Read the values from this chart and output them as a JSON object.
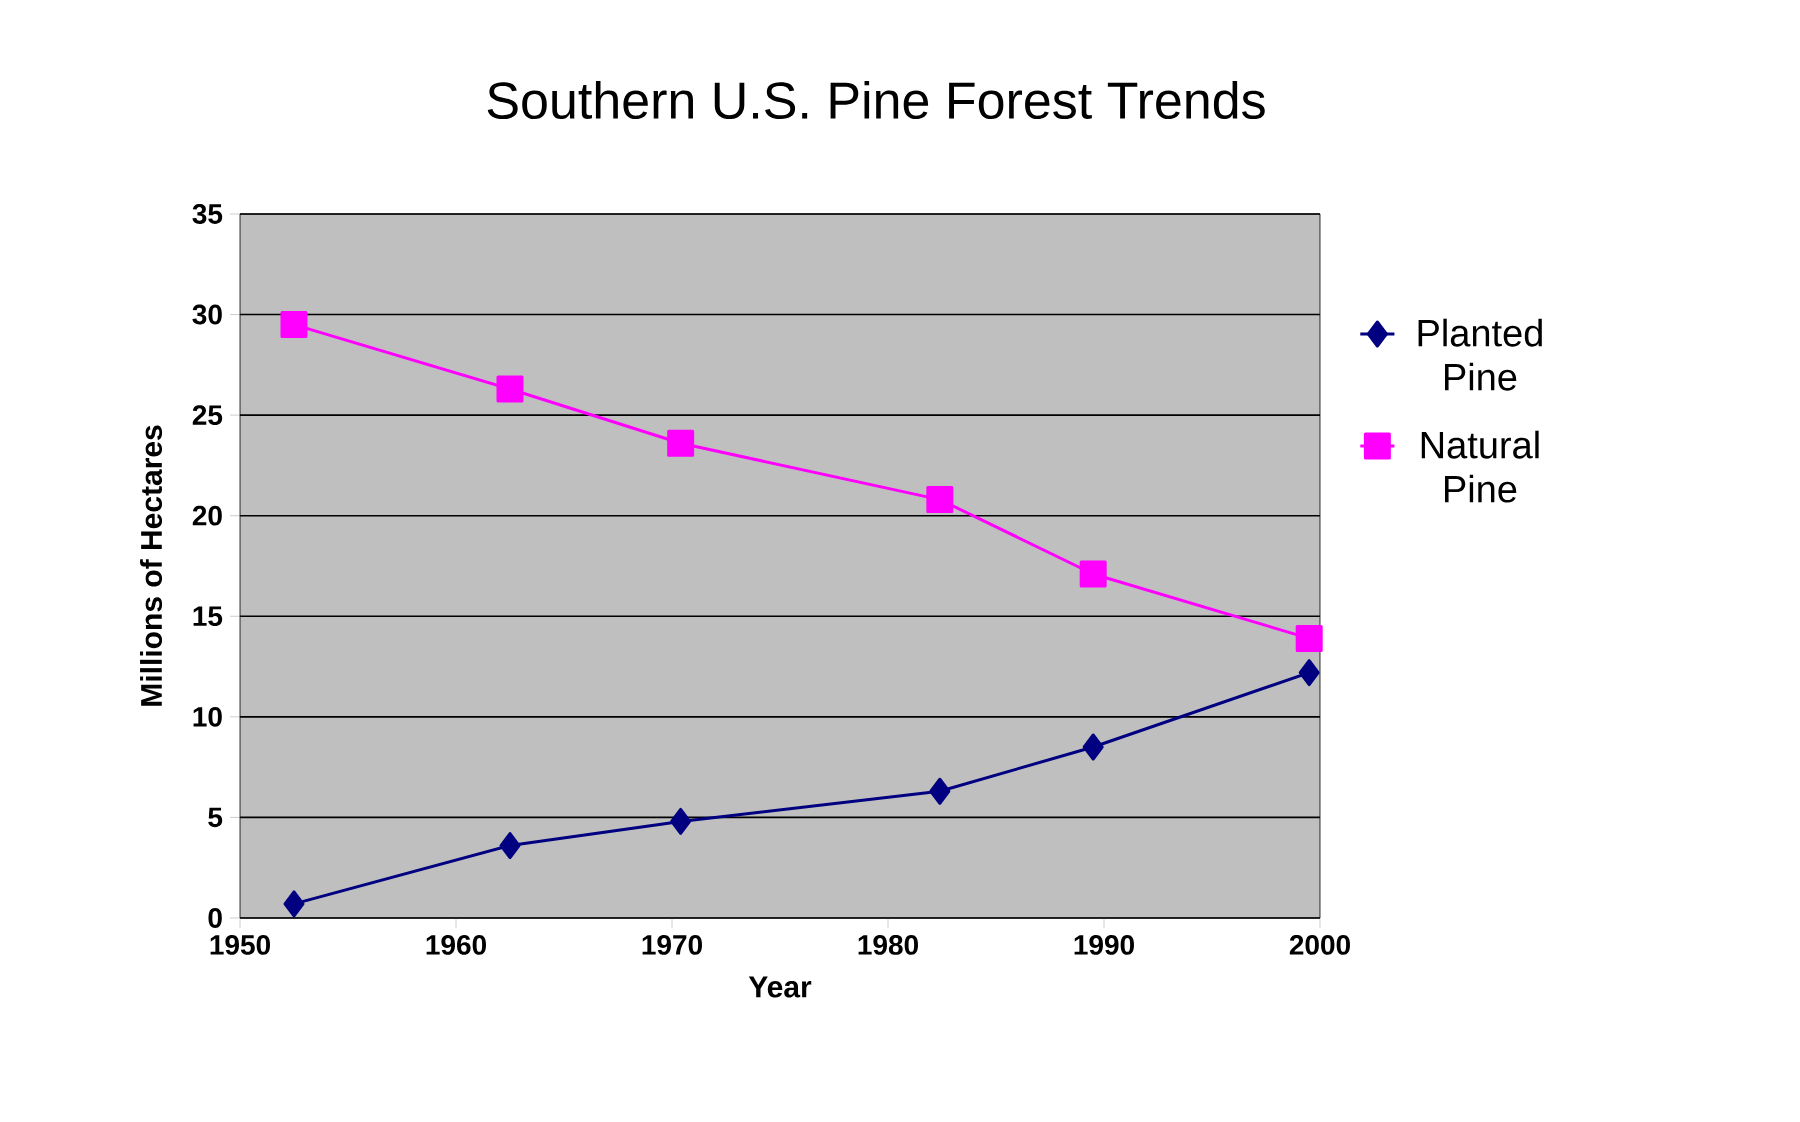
{
  "chart_data": {
    "type": "line",
    "title": "Southern U.S. Pine Forest Trends",
    "xlabel": "Year",
    "ylabel": "Millions of Hectares",
    "xlim": [
      1950,
      2000
    ],
    "xticks": [
      1950,
      1960,
      1970,
      1980,
      1990,
      2000
    ],
    "ylim": [
      0,
      35
    ],
    "yticks": [
      0,
      5,
      10,
      15,
      20,
      25,
      30,
      35
    ],
    "grid": "y",
    "legend": "right",
    "line_style": "solid",
    "series": [
      {
        "name": "Planted Pine",
        "color": "#000080",
        "marker": "diamond",
        "x": [
          1952.5,
          1962.5,
          1970.4,
          1982.4,
          1989.5,
          1999.5
        ],
        "values": [
          0.7,
          3.6,
          4.8,
          6.3,
          8.5,
          12.2
        ]
      },
      {
        "name": "Natural Pine",
        "color": "#ff00ff",
        "marker": "square",
        "x": [
          1952.5,
          1962.5,
          1970.4,
          1982.4,
          1989.5,
          1999.5
        ],
        "values": [
          29.5,
          26.3,
          23.6,
          20.8,
          17.1,
          13.9
        ]
      }
    ]
  }
}
